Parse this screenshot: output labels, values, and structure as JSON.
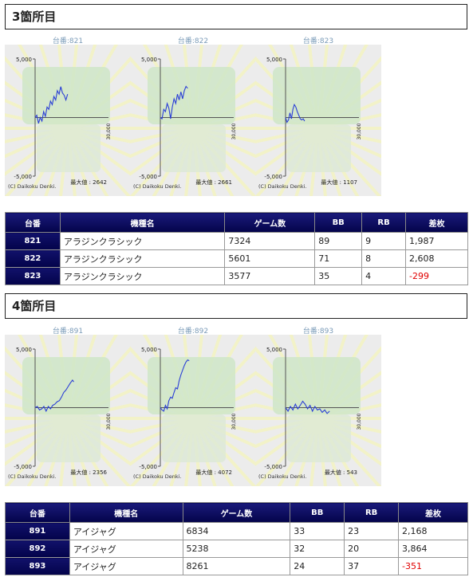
{
  "sections": [
    {
      "title": "3箇所目",
      "charts": [
        {
          "label": "台番:821",
          "max_label": "最大値 : 2642",
          "copyright": "(C) Daikoku Denki."
        },
        {
          "label": "台番:822",
          "max_label": "最大値 : 2661",
          "copyright": "(C) Daikoku Denki."
        },
        {
          "label": "台番:823",
          "max_label": "最大値 : 1107",
          "copyright": "(C) Daikoku Denki."
        }
      ],
      "table": {
        "headers": [
          "台番",
          "機種名",
          "ゲーム数",
          "BB",
          "RB",
          "差枚"
        ],
        "rows": [
          {
            "id": "821",
            "name": "アラジンクラシック",
            "games": "7324",
            "bb": "89",
            "rb": "9",
            "diff": "1,987",
            "negative": false
          },
          {
            "id": "822",
            "name": "アラジンクラシック",
            "games": "5601",
            "bb": "71",
            "rb": "8",
            "diff": "2,608",
            "negative": false
          },
          {
            "id": "823",
            "name": "アラジンクラシック",
            "games": "3577",
            "bb": "35",
            "rb": "4",
            "diff": "-299",
            "negative": true
          }
        ]
      }
    },
    {
      "title": "4箇所目",
      "charts": [
        {
          "label": "台番:891",
          "max_label": "最大値 : 2356",
          "copyright": "(C) Daikoku Denki."
        },
        {
          "label": "台番:892",
          "max_label": "最大値 : 4072",
          "copyright": "(C) Daikoku Denki."
        },
        {
          "label": "台番:893",
          "max_label": "最大値 : 543",
          "copyright": "(C) Daikoku Denki."
        }
      ],
      "table": {
        "headers": [
          "台番",
          "機種名",
          "ゲーム数",
          "BB",
          "RB",
          "差枚"
        ],
        "rows": [
          {
            "id": "891",
            "name": "アイジャグ",
            "games": "6834",
            "bb": "33",
            "rb": "23",
            "diff": "2,168",
            "negative": false
          },
          {
            "id": "892",
            "name": "アイジャグ",
            "games": "5238",
            "bb": "32",
            "rb": "20",
            "diff": "3,864",
            "negative": false
          },
          {
            "id": "893",
            "name": "アイジャグ",
            "games": "8261",
            "bb": "24",
            "rb": "37",
            "diff": "-351",
            "negative": true
          }
        ]
      }
    }
  ],
  "chart_data": [
    {
      "type": "line",
      "title": "台番:821",
      "ylim": [
        -5000,
        5000
      ],
      "xlim": [
        0,
        30000
      ],
      "yticks": [
        "5,000",
        "-5,000"
      ],
      "xtick": "30,000",
      "series": [
        {
          "values": [
            [
              0,
              0
            ],
            [
              700,
              200
            ],
            [
              1400,
              -500
            ],
            [
              2100,
              0
            ],
            [
              2800,
              -300
            ],
            [
              3500,
              500
            ],
            [
              4200,
              100
            ],
            [
              4900,
              900
            ],
            [
              5600,
              700
            ],
            [
              6300,
              1400
            ],
            [
              7000,
              1100
            ],
            [
              7700,
              1800
            ],
            [
              8400,
              1500
            ],
            [
              9100,
              2300
            ],
            [
              9800,
              2000
            ],
            [
              10500,
              2642
            ],
            [
              11200,
              2100
            ],
            [
              11900,
              1900
            ],
            [
              12600,
              1500
            ],
            [
              13300,
              2000
            ]
          ]
        }
      ]
    },
    {
      "type": "line",
      "title": "台番:822",
      "ylim": [
        -5000,
        5000
      ],
      "xlim": [
        0,
        30000
      ],
      "yticks": [
        "5,000",
        "-5,000"
      ],
      "xtick": "30,000",
      "series": [
        {
          "values": [
            [
              0,
              0
            ],
            [
              700,
              -100
            ],
            [
              1400,
              700
            ],
            [
              2100,
              500
            ],
            [
              2800,
              1200
            ],
            [
              3500,
              800
            ],
            [
              4200,
              -100
            ],
            [
              4900,
              900
            ],
            [
              5600,
              1600
            ],
            [
              6300,
              1200
            ],
            [
              7000,
              2000
            ],
            [
              7700,
              1500
            ],
            [
              8400,
              2200
            ],
            [
              9100,
              1600
            ],
            [
              9800,
              2300
            ],
            [
              10500,
              2661
            ],
            [
              11200,
              2500
            ]
          ]
        }
      ]
    },
    {
      "type": "line",
      "title": "台番:823",
      "ylim": [
        -5000,
        5000
      ],
      "xlim": [
        0,
        30000
      ],
      "yticks": [
        "5,000",
        "-5,000"
      ],
      "xtick": "30,000",
      "series": [
        {
          "values": [
            [
              0,
              0
            ],
            [
              600,
              -400
            ],
            [
              1200,
              -200
            ],
            [
              1800,
              400
            ],
            [
              2400,
              -100
            ],
            [
              3000,
              700
            ],
            [
              3600,
              1107
            ],
            [
              4200,
              900
            ],
            [
              4800,
              500
            ],
            [
              5400,
              200
            ],
            [
              6000,
              -100
            ],
            [
              6600,
              -200
            ],
            [
              7200,
              -100
            ],
            [
              7800,
              -300
            ]
          ]
        }
      ]
    },
    {
      "type": "line",
      "title": "台番:891",
      "ylim": [
        -5000,
        5000
      ],
      "xlim": [
        0,
        30000
      ],
      "yticks": [
        "5,000",
        "-5,000"
      ],
      "xtick": "30,000",
      "series": [
        {
          "values": [
            [
              0,
              0
            ],
            [
              900,
              100
            ],
            [
              1800,
              -200
            ],
            [
              2700,
              -100
            ],
            [
              3600,
              100
            ],
            [
              4500,
              -300
            ],
            [
              5400,
              100
            ],
            [
              6300,
              -100
            ],
            [
              7200,
              200
            ],
            [
              8100,
              300
            ],
            [
              9000,
              500
            ],
            [
              9900,
              600
            ],
            [
              10800,
              900
            ],
            [
              11700,
              1300
            ],
            [
              12600,
              1500
            ],
            [
              13500,
              1800
            ],
            [
              14400,
              2100
            ],
            [
              15300,
              2356
            ],
            [
              15800,
              2200
            ]
          ]
        }
      ]
    },
    {
      "type": "line",
      "title": "台番:892",
      "ylim": [
        -5000,
        5000
      ],
      "xlim": [
        0,
        30000
      ],
      "yticks": [
        "5,000",
        "-5,000"
      ],
      "xtick": "30,000",
      "series": [
        {
          "values": [
            [
              0,
              0
            ],
            [
              700,
              -200
            ],
            [
              1400,
              -300
            ],
            [
              2100,
              200
            ],
            [
              2800,
              -100
            ],
            [
              3500,
              600
            ],
            [
              4200,
              900
            ],
            [
              4900,
              800
            ],
            [
              5600,
              1300
            ],
            [
              6300,
              1700
            ],
            [
              7000,
              1600
            ],
            [
              7700,
              2300
            ],
            [
              8400,
              2800
            ],
            [
              9100,
              3200
            ],
            [
              9800,
              3600
            ],
            [
              10500,
              3900
            ],
            [
              11200,
              4072
            ],
            [
              11800,
              4000
            ]
          ]
        }
      ]
    },
    {
      "type": "line",
      "title": "台番:893",
      "ylim": [
        -5000,
        5000
      ],
      "xlim": [
        0,
        30000
      ],
      "yticks": [
        "5,000",
        "-5,000"
      ],
      "xtick": "30,000",
      "series": [
        {
          "values": [
            [
              0,
              0
            ],
            [
              1000,
              -300
            ],
            [
              2000,
              100
            ],
            [
              3000,
              -200
            ],
            [
              4000,
              300
            ],
            [
              5000,
              -100
            ],
            [
              6000,
              200
            ],
            [
              7000,
              543
            ],
            [
              8000,
              300
            ],
            [
              9000,
              -100
            ],
            [
              10000,
              200
            ],
            [
              11000,
              -300
            ],
            [
              12000,
              100
            ],
            [
              13000,
              -200
            ],
            [
              14000,
              -100
            ],
            [
              15000,
              -400
            ],
            [
              16000,
              -200
            ],
            [
              17000,
              -500
            ],
            [
              18000,
              -300
            ]
          ]
        }
      ]
    }
  ]
}
